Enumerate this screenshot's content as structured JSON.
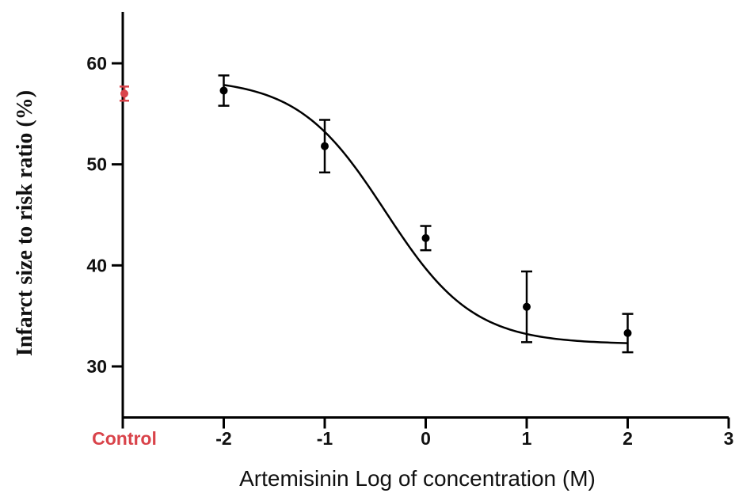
{
  "chart_data": {
    "type": "scatter",
    "xlabel": "Artemisinin Log of concentration (M)",
    "ylabel": "Infarct size to risk ratio (%)",
    "xlim": [
      -3,
      3
    ],
    "ylim": [
      25,
      65
    ],
    "x_ticks": [
      {
        "value": -3,
        "label": ""
      },
      {
        "value": -2,
        "label": "-2"
      },
      {
        "value": -1,
        "label": "-1"
      },
      {
        "value": 0,
        "label": "0"
      },
      {
        "value": 1,
        "label": "1"
      },
      {
        "value": 2,
        "label": "2"
      },
      {
        "value": 3,
        "label": "3"
      }
    ],
    "y_ticks": [
      {
        "value": 30,
        "label": "30"
      },
      {
        "value": 40,
        "label": "40"
      },
      {
        "value": 50,
        "label": "50"
      },
      {
        "value": 60,
        "label": "60"
      }
    ],
    "control": {
      "label": "Control",
      "x": -3,
      "y": 57,
      "error": 0.7,
      "color": "#d9434a"
    },
    "series": [
      {
        "color": "#000000",
        "points": [
          {
            "x": -2,
            "y": 57.3,
            "error": 1.5
          },
          {
            "x": -1,
            "y": 51.8,
            "error": 2.6
          },
          {
            "x": 0,
            "y": 42.7,
            "error": 1.2
          },
          {
            "x": 1,
            "y": 35.9,
            "error": 3.5
          },
          {
            "x": 2,
            "y": 33.3,
            "error": 1.9
          }
        ],
        "fit": {
          "model": "sigmoidal",
          "bottom": 32.2,
          "top": 58.5,
          "logEC50": -0.4,
          "hill": -1
        }
      }
    ],
    "grid": false,
    "legend": "none"
  }
}
